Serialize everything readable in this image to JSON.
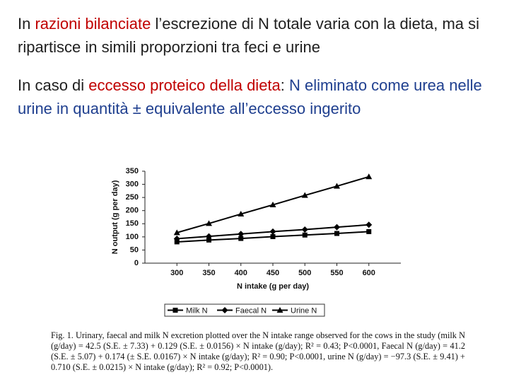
{
  "paragraphs": [
    {
      "segments": [
        {
          "text": "In ",
          "color": "#1f1f1f"
        },
        {
          "text": "razioni bilanciate",
          "color": "#c00000"
        },
        {
          "text": " l’escrezione di N totale varia con la dieta, ma si ripartisce in simili proporzioni tra feci e urine",
          "color": "#1f1f1f"
        }
      ]
    },
    {
      "segments": [
        {
          "text": "In caso di ",
          "color": "#1f1f1f"
        },
        {
          "text": "eccesso proteico della dieta",
          "color": "#c00000"
        },
        {
          "text": ": ",
          "color": "#1f1f1f"
        },
        {
          "text": "N eliminato come urea nelle urine in quantità ± equivalente all’eccesso ingerito",
          "color": "#1f3f8f"
        }
      ]
    }
  ],
  "chart_data": {
    "type": "line",
    "x_label": "N intake (g per day)",
    "y_label": "N output (g per day)",
    "x": [
      300,
      350,
      400,
      450,
      500,
      550,
      600
    ],
    "xlim": [
      250,
      650
    ],
    "xticks": [
      300,
      350,
      400,
      450,
      500,
      550,
      600
    ],
    "ylim": [
      0,
      350
    ],
    "yticks": [
      0,
      50,
      100,
      150,
      200,
      250,
      300,
      350
    ],
    "grid": false,
    "legend": "bottom",
    "series": [
      {
        "name": "Milk N",
        "color": "#000000",
        "marker": "square",
        "values": [
          81,
          88,
          94,
          101,
          107,
          113,
          120
        ]
      },
      {
        "name": "Faecal N",
        "color": "#000000",
        "marker": "diamond",
        "values": [
          93,
          102,
          111,
          120,
          128,
          137,
          146
        ]
      },
      {
        "name": "Urine N",
        "color": "#000000",
        "marker": "triangle",
        "values": [
          116,
          151,
          187,
          222,
          258,
          293,
          329
        ]
      }
    ]
  },
  "caption": "Fig. 1. Urinary, faecal and milk N excretion plotted over the N intake range observed for the cows in the study (milk N (g/day) = 42.5 (S.E. ± 7.33) + 0.129 (S.E. ± 0.0156) × N intake (g/day); R² = 0.43; P<0.0001, Faecal N (g/day) = 41.2 (S.E. ± 5.07) + 0.174 (± S.E. 0.0167) × N intake (g/day); R² = 0.90; P<0.0001, urine N (g/day) = −97.3 (S.E. ± 9.41) + 0.710 (S.E. ± 0.0215) × N intake (g/day); R² = 0.92; P<0.0001)."
}
